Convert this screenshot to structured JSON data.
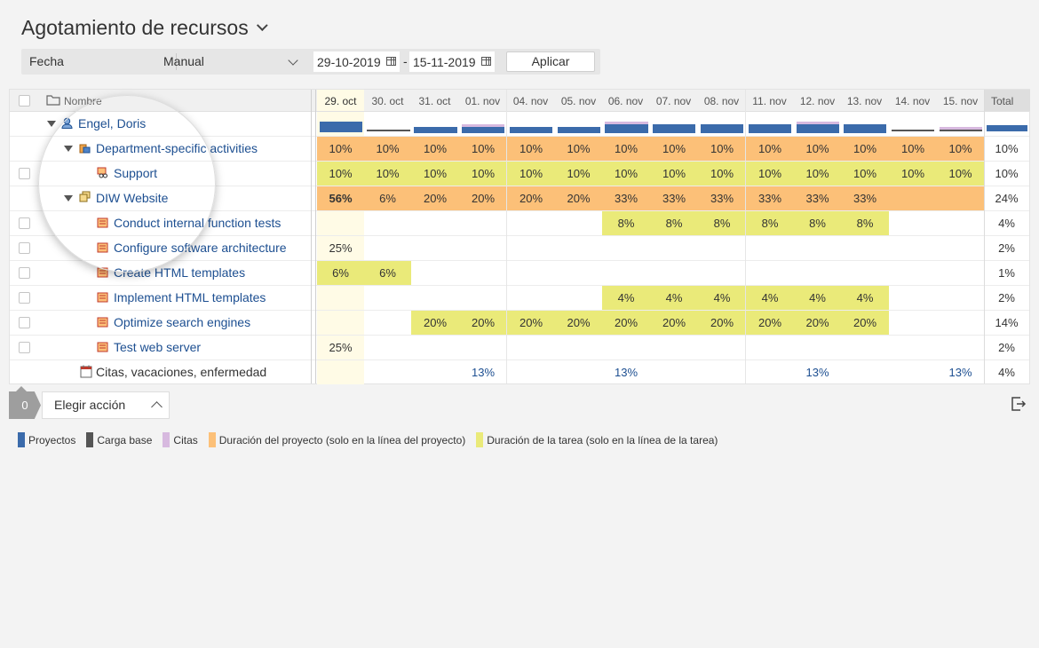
{
  "title": "Agotamiento de recursos",
  "filter": {
    "label": "Fecha",
    "mode": "Manual",
    "date_from": "29-10-2019",
    "date_to": "15-11-2019",
    "separator": "-",
    "apply": "Aplicar"
  },
  "grid": {
    "name_header": "Nombre",
    "dates": [
      "29. oct",
      "30. oct",
      "31. oct",
      "01. nov",
      "04. nov",
      "05. nov",
      "06. nov",
      "07. nov",
      "08. nov",
      "11. nov",
      "12. nov",
      "13. nov",
      "14. nov",
      "15. nov"
    ],
    "total_header": "Total",
    "rows": [
      {
        "label": "Engel, Doris"
      },
      {
        "label": "Department-specific activities",
        "cells": [
          "10%",
          "10%",
          "10%",
          "10%",
          "10%",
          "10%",
          "10%",
          "10%",
          "10%",
          "10%",
          "10%",
          "10%",
          "10%",
          "10%"
        ],
        "total": "10%"
      },
      {
        "label": "Support",
        "cells": [
          "10%",
          "10%",
          "10%",
          "10%",
          "10%",
          "10%",
          "10%",
          "10%",
          "10%",
          "10%",
          "10%",
          "10%",
          "10%",
          "10%"
        ],
        "total": "10%"
      },
      {
        "label": "DIW Website",
        "cells": [
          "56%",
          "6%",
          "20%",
          "20%",
          "20%",
          "20%",
          "33%",
          "33%",
          "33%",
          "33%",
          "33%",
          "33%",
          "",
          ""
        ],
        "total": "24%"
      },
      {
        "label": "Conduct internal function tests",
        "cells": [
          "",
          "",
          "",
          "",
          "",
          "",
          "8%",
          "8%",
          "8%",
          "8%",
          "8%",
          "8%",
          "",
          ""
        ],
        "total": "4%"
      },
      {
        "label": "Configure software architecture",
        "cells": [
          "25%",
          "",
          "",
          "",
          "",
          "",
          "",
          "",
          "",
          "",
          "",
          "",
          "",
          ""
        ],
        "total": "2%"
      },
      {
        "label": "Create HTML templates",
        "cells": [
          "6%",
          "6%",
          "",
          "",
          "",
          "",
          "",
          "",
          "",
          "",
          "",
          "",
          "",
          ""
        ],
        "total": "1%"
      },
      {
        "label": "Implement HTML templates",
        "cells": [
          "",
          "",
          "",
          "",
          "",
          "",
          "4%",
          "4%",
          "4%",
          "4%",
          "4%",
          "4%",
          "",
          ""
        ],
        "total": "2%"
      },
      {
        "label": "Optimize search engines",
        "cells": [
          "",
          "",
          "20%",
          "20%",
          "20%",
          "20%",
          "20%",
          "20%",
          "20%",
          "20%",
          "20%",
          "20%",
          "",
          ""
        ],
        "total": "14%"
      },
      {
        "label": "Test web server",
        "cells": [
          "25%",
          "",
          "",
          "",
          "",
          "",
          "",
          "",
          "",
          "",
          "",
          "",
          "",
          ""
        ],
        "total": "2%"
      },
      {
        "label": "Citas, vacaciones, enfermedad",
        "cells": [
          "",
          "",
          "",
          "13%",
          "",
          "",
          "13%",
          "",
          "",
          "",
          "13%",
          "",
          "",
          "13%"
        ],
        "total": "4%"
      }
    ]
  },
  "actions": {
    "count": "0",
    "select_label": "Elegir acción"
  },
  "legend": [
    {
      "label": "Proyectos",
      "color": "#3b6bab"
    },
    {
      "label": "Carga base",
      "color": "#555555"
    },
    {
      "label": "Citas",
      "color": "#d7b9df"
    },
    {
      "label": "Duración del proyecto (solo en la línea del proyecto)",
      "color": "#fcc078"
    },
    {
      "label": "Duración de la tarea (solo en la línea de la tarea)",
      "color": "#eaea79"
    }
  ],
  "icons": [
    "chevron-down-icon",
    "calendar-icon",
    "checkbox-icon",
    "folder-icon",
    "user-icon",
    "department-icon",
    "task-icon",
    "project-icon",
    "appointment-icon",
    "chevron-up-icon",
    "export-icon"
  ]
}
